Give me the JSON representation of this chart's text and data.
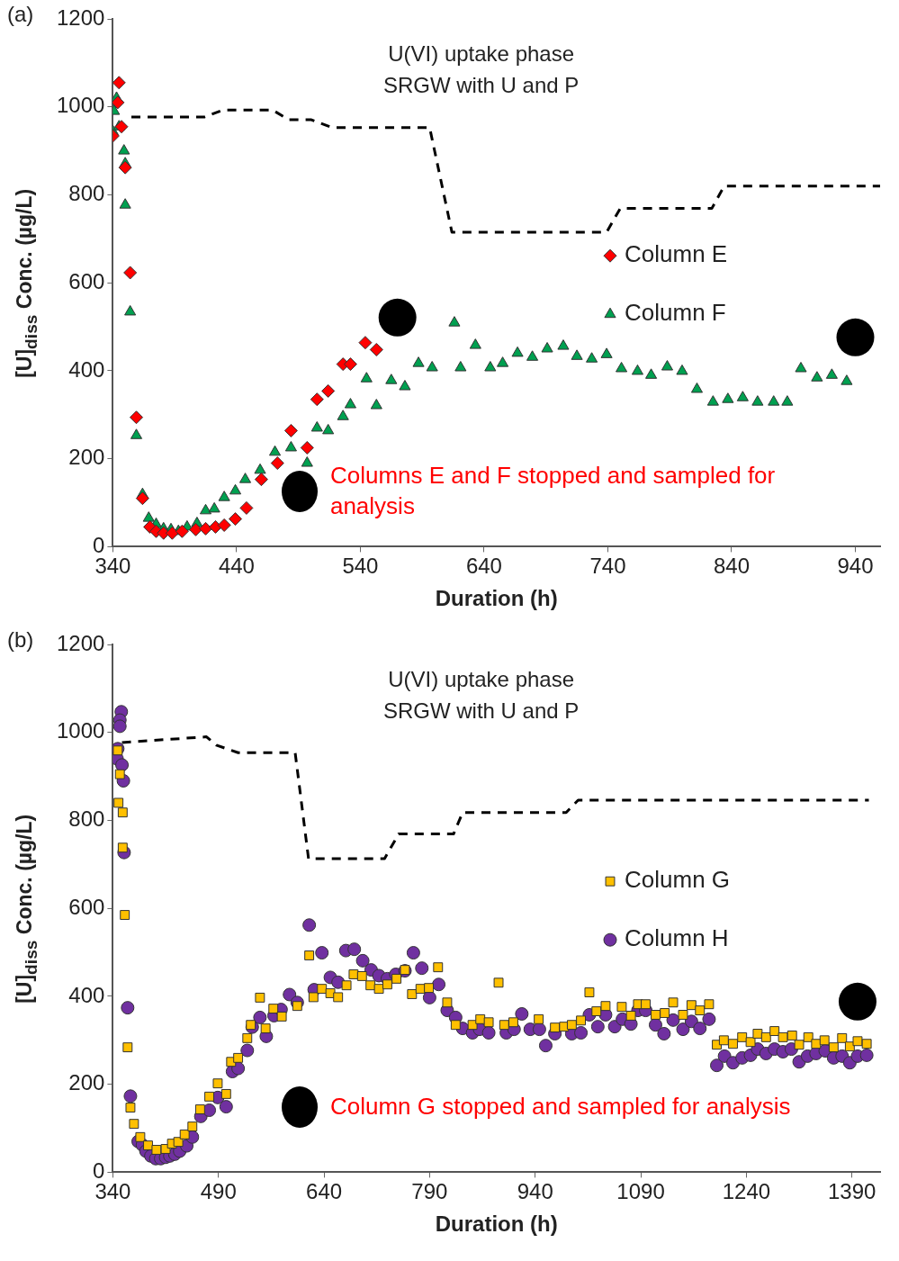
{
  "chart_data": [
    {
      "type": "scatter",
      "xlabel": "Duration (h)",
      "ylabel": "[U]$_{diss}$ Conc. (µg/L)",
      "annotations": [
        "(a)",
        "U(VI) uptake phase",
        "SRGW with U and P",
        "Columns E and F stopped and sampled for analysis"
      ],
      "xlim": [
        340,
        960
      ],
      "xticks": [
        340,
        440,
        540,
        640,
        740,
        840,
        940
      ],
      "ylim": [
        0,
        1200
      ],
      "yticks": [
        0,
        200,
        400,
        600,
        800,
        1000,
        1200
      ],
      "legend": "right",
      "series": [
        {
          "name": "Column E",
          "color": "#ff0000",
          "marker": "diamond",
          "x": [
            340,
            345,
            344,
            347,
            350,
            354,
            359,
            364,
            370,
            375,
            381,
            388,
            396,
            407,
            415,
            423,
            430,
            439,
            448,
            460,
            473,
            484,
            497,
            505,
            514,
            526,
            532,
            544,
            553
          ],
          "values": [
            934,
            1055,
            1010,
            955,
            862,
            623,
            294,
            110,
            45,
            35,
            31,
            31,
            35,
            39,
            41,
            45,
            49,
            63,
            88,
            153,
            190,
            264,
            225,
            335,
            354,
            415,
            415,
            464,
            448
          ]
        },
        {
          "name": "Column F",
          "color": "#00a050",
          "marker": "triangle",
          "x": [
            340,
            341,
            343,
            345,
            349,
            350,
            350,
            354,
            359,
            364,
            369,
            375,
            381,
            387,
            393,
            400,
            408,
            415,
            422,
            430,
            439,
            447,
            459,
            471,
            484,
            497,
            505,
            514,
            526,
            532,
            545,
            553,
            565,
            576,
            587,
            598,
            616,
            621,
            633,
            645,
            655,
            667,
            679,
            691,
            704,
            715,
            727,
            739,
            751,
            764,
            775,
            788,
            800,
            812,
            825,
            837,
            849,
            861,
            874,
            885,
            896,
            909,
            921,
            933
          ],
          "values": [
            944,
            990,
            1020,
            955,
            900,
            871,
            777,
            534,
            253,
            119,
            65,
            51,
            41,
            39,
            35,
            45,
            53,
            82,
            86,
            112,
            127,
            153,
            174,
            215,
            225,
            190,
            270,
            264,
            296,
            323,
            382,
            321,
            378,
            364,
            417,
            407,
            509,
            407,
            458,
            407,
            417,
            440,
            431,
            450,
            456,
            433,
            427,
            437,
            405,
            399,
            390,
            409,
            399,
            358,
            329,
            335,
            339,
            329,
            329,
            329,
            405,
            384,
            390,
            376
          ]
        },
        {
          "type": "line",
          "color": "#000000",
          "marker": "none",
          "line_style": "dashed",
          "x": [
            355,
            414,
            429,
            469,
            482,
            500,
            517,
            596,
            614,
            739,
            750,
            824,
            834,
            960
          ],
          "values": [
            977,
            977,
            993,
            993,
            971,
            971,
            953,
            953,
            715,
            715,
            769,
            769,
            820,
            820
          ]
        },
        {
          "type": "bubble",
          "color": "#000000",
          "x": [
            570,
            940
          ],
          "values": [
            521,
            476
          ],
          "sizes": [
            1,
            1
          ]
        }
      ]
    },
    {
      "type": "scatter",
      "xlabel": "Duration (h)",
      "ylabel": "[U]$_{diss}$ Conc. (µg/L)",
      "annotations": [
        "(b)",
        "U(VI) uptake phase",
        "SRGW with U and P",
        "Column G stopped and sampled for analysis"
      ],
      "xlim": [
        340,
        1430
      ],
      "xticks": [
        340,
        490,
        640,
        790,
        940,
        1090,
        1240,
        1390
      ],
      "ylim": [
        0,
        1200
      ],
      "yticks": [
        0,
        200,
        400,
        600,
        800,
        1000,
        1200
      ],
      "legend": "right",
      "series": [
        {
          "name": "Column G",
          "color": "#ffc000",
          "marker": "square",
          "x": [
            347,
            350,
            348,
            354,
            354,
            357,
            361,
            365,
            370,
            379,
            390,
            402,
            415,
            424,
            433,
            442,
            453,
            464,
            477,
            489,
            501,
            508,
            518,
            531,
            536,
            549,
            557,
            568,
            580,
            602,
            619,
            625,
            637,
            649,
            660,
            672,
            682,
            694,
            706,
            718,
            730,
            743,
            755,
            765,
            777,
            789,
            802,
            815,
            827,
            851,
            862,
            874,
            888,
            896,
            909,
            945,
            968,
            981,
            992,
            1005,
            1017,
            1027,
            1040,
            1063,
            1076,
            1086,
            1097,
            1111,
            1124,
            1136,
            1150,
            1162,
            1174,
            1187,
            1198,
            1208,
            1221,
            1234,
            1246,
            1256,
            1268,
            1280,
            1292,
            1305,
            1315,
            1328,
            1339,
            1351,
            1364,
            1376,
            1387,
            1398,
            1411
          ],
          "values": [
            959,
            905,
            840,
            818,
            738,
            585,
            284,
            147,
            110,
            80,
            61,
            51,
            53,
            65,
            69,
            86,
            104,
            143,
            172,
            202,
            178,
            251,
            260,
            305,
            335,
            397,
            327,
            372,
            354,
            378,
            493,
            398,
            417,
            407,
            398,
            425,
            450,
            446,
            425,
            417,
            427,
            440,
            460,
            405,
            417,
            419,
            466,
            386,
            335,
            335,
            348,
            341,
            431,
            335,
            341,
            348,
            329,
            331,
            335,
            345,
            409,
            366,
            378,
            376,
            356,
            382,
            382,
            358,
            362,
            386,
            358,
            380,
            368,
            382,
            290,
            300,
            292,
            307,
            296,
            315,
            307,
            321,
            307,
            311,
            290,
            307,
            292,
            300,
            284,
            305,
            286,
            298,
            292
          ]
        },
        {
          "name": "Column H",
          "color": "#7030a0",
          "marker": "circle",
          "x": [
            352,
            350,
            350,
            347,
            346,
            353,
            355,
            356,
            361,
            365,
            370,
            376,
            382,
            387,
            394,
            401,
            408,
            415,
            421,
            428,
            435,
            445,
            453,
            465,
            477,
            489,
            501,
            510,
            518,
            531,
            538,
            549,
            558,
            569,
            579,
            591,
            602,
            619,
            626,
            637,
            649,
            660,
            671,
            683,
            695,
            707,
            718,
            730,
            742,
            755,
            767,
            779,
            790,
            803,
            815,
            827,
            837,
            851,
            861,
            874,
            899,
            910,
            921,
            933,
            946,
            955,
            968,
            992,
            1005,
            1017,
            1029,
            1040,
            1053,
            1064,
            1076,
            1086,
            1097,
            1111,
            1123,
            1136,
            1150,
            1162,
            1174,
            1187,
            1198,
            1209,
            1221,
            1234,
            1246,
            1256,
            1268,
            1280,
            1292,
            1304,
            1315,
            1327,
            1339,
            1352,
            1364,
            1376,
            1387,
            1398,
            1411
          ],
          "values": [
            1047,
            1028,
            1014,
            963,
            940,
            926,
            890,
            727,
            374,
            173,
            null,
            70,
            62,
            48,
            37,
            31,
            31,
            34,
            37,
            41,
            48,
            60,
            80,
            127,
            141,
            170,
            149,
            229,
            236,
            277,
            330,
            352,
            309,
            356,
            370,
            404,
            386,
            562,
            415,
            499,
            443,
            432,
            504,
            507,
            481,
            460,
            447,
            440,
            450,
            458,
            499,
            464,
            397,
            427,
            368,
            352,
            327,
            317,
            325,
            317,
            317,
            325,
            360,
            325,
            325,
            288,
            315,
            315,
            317,
            358,
            331,
            358,
            331,
            348,
            337,
            368,
            368,
            335,
            315,
            346,
            325,
            343,
            327,
            348,
            243,
            264,
            249,
            260,
            266,
            280,
            270,
            280,
            274,
            280,
            251,
            264,
            270,
            276,
            260,
            264,
            249,
            264,
            266
          ]
        },
        {
          "type": "line",
          "color": "#000000",
          "marker": "none",
          "line_style": "dashed",
          "x": [
            353,
            473,
            487,
            518,
            599,
            618,
            726,
            746,
            824,
            837,
            984,
            1001,
            1414
          ],
          "values": [
            977,
            990,
            971,
            954,
            954,
            713,
            713,
            769,
            769,
            818,
            818,
            846,
            846
          ]
        },
        {
          "type": "bubble",
          "color": "#000000",
          "x": [
            1398
          ],
          "values": [
            388
          ],
          "sizes": [
            1
          ]
        }
      ]
    }
  ]
}
